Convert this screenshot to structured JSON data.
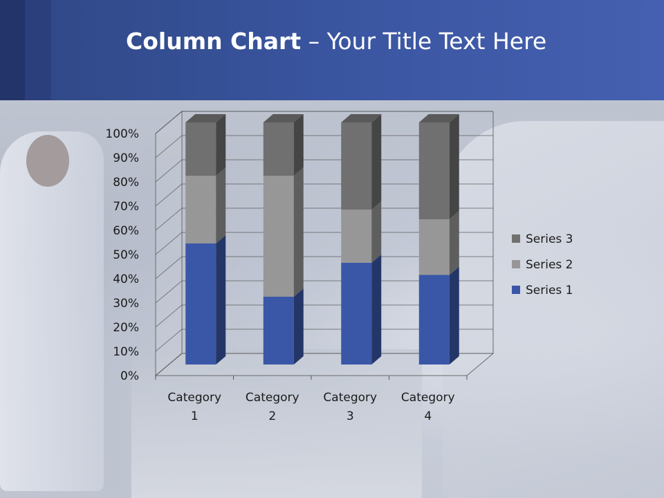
{
  "slide": {
    "title_bold": "Column Chart",
    "title_rest": " – Your Title Text Here"
  },
  "chart_data": {
    "type": "bar",
    "stacked": "percent",
    "three_d": true,
    "categories": [
      [
        "Category",
        "1"
      ],
      [
        "Category",
        "2"
      ],
      [
        "Category",
        "3"
      ],
      [
        "Category",
        "4"
      ]
    ],
    "series": [
      {
        "name": "Series 1",
        "color": "#3a57a7",
        "values": [
          50,
          28,
          42,
          37
        ]
      },
      {
        "name": "Series 2",
        "color": "#979797",
        "values": [
          28,
          50,
          22,
          23
        ]
      },
      {
        "name": "Series 3",
        "color": "#707070",
        "values": [
          22,
          22,
          36,
          40
        ]
      }
    ],
    "yticks": [
      "0%",
      "10%",
      "20%",
      "30%",
      "40%",
      "50%",
      "60%",
      "70%",
      "80%",
      "90%",
      "100%"
    ],
    "ylim": [
      0,
      100
    ],
    "grid": true,
    "legend": "right"
  }
}
